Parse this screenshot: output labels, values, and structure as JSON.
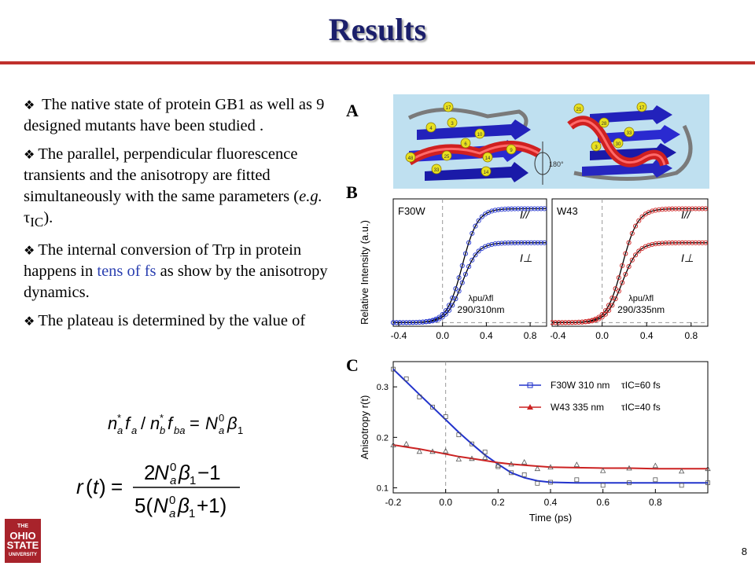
{
  "slide": {
    "title": "Results",
    "page_number": "8",
    "logo": {
      "line1": "THE",
      "line2": "OHIO STATE",
      "line3": "UNIVERSITY"
    }
  },
  "bullets": [
    {
      "pre": " The native state of protein GB1 as well as 9 designed mutants have been studied ."
    },
    {
      "pre": "The parallel, perpendicular fluorescence transients and the anisotropy are fitted simultaneously with the same parameters (",
      "italic": "e.g.",
      "post": " τ",
      "sub": "IC",
      "tail": ")."
    },
    {
      "pre": "The internal conversion of Trp in protein happens in ",
      "highlight": "tens of fs",
      "post": " as show by the anisotropy dynamics."
    },
    {
      "pre": "The plateau is determined by the value of"
    }
  ],
  "equations": {
    "inline": "n*a fa / n*b fba = N0a β1",
    "big": "r(t) = (2N0a β1 − 1) / (5(N0a β1 + 1))"
  },
  "panels": {
    "A": "A",
    "B": "B",
    "C": "C"
  },
  "panel_A": {
    "rotation_label": "180°",
    "residue_labels": [
      "17",
      "4",
      "3",
      "10",
      "6",
      "25",
      "33",
      "14",
      "48",
      "14",
      "9",
      "21",
      "28",
      "33",
      "30",
      "3",
      "17"
    ]
  },
  "panel_B": {
    "ylabel": "Relative Intensity (a.u.)",
    "xticks": [
      "-0.4",
      "0.0",
      "0.4",
      "0.8"
    ],
    "left": {
      "name": "F30W",
      "wavelength_label": "λpu/λfl",
      "wavelength_value": "290/310nm",
      "color": "#2233cc"
    },
    "right": {
      "name": "W43",
      "wavelength_label": "λpu/λfl",
      "wavelength_value": "290/335nm",
      "color": "#cc2222"
    },
    "par_label": "I//",
    "perp_label": "I⊥"
  },
  "chart_data": {
    "type": "line",
    "xlabel": "Time (ps)",
    "ylabel": "Anisotropy r(t)",
    "xlim": [
      -0.2,
      1.0
    ],
    "ylim": [
      0.09,
      0.35
    ],
    "xticks": [
      "-0.2",
      "0.0",
      "0.2",
      "0.4",
      "0.6",
      "0.8"
    ],
    "yticks": [
      "0.1",
      "0.2",
      "0.3"
    ],
    "series": [
      {
        "name": "F30W 310 nm",
        "tau_label": "τIC=60 fs",
        "color": "#2233cc",
        "x": [
          -0.2,
          -0.15,
          -0.1,
          -0.05,
          0.0,
          0.05,
          0.1,
          0.15,
          0.2,
          0.25,
          0.3,
          0.35,
          0.4,
          0.5,
          0.6,
          0.7,
          0.8,
          0.9,
          1.0
        ],
        "y": [
          0.335,
          0.31,
          0.285,
          0.26,
          0.235,
          0.21,
          0.187,
          0.165,
          0.147,
          0.13,
          0.12,
          0.114,
          0.111,
          0.11,
          0.11,
          0.11,
          0.11,
          0.11,
          0.11
        ]
      },
      {
        "name": "W43 335 nm",
        "tau_label": "τIC=40 fs",
        "color": "#cc2222",
        "x": [
          -0.2,
          -0.15,
          -0.1,
          -0.05,
          0.0,
          0.05,
          0.1,
          0.15,
          0.2,
          0.25,
          0.3,
          0.35,
          0.4,
          0.5,
          0.6,
          0.7,
          0.8,
          0.9,
          1.0
        ],
        "y": [
          0.185,
          0.181,
          0.177,
          0.172,
          0.167,
          0.162,
          0.158,
          0.154,
          0.15,
          0.147,
          0.145,
          0.143,
          0.141,
          0.14,
          0.139,
          0.139,
          0.138,
          0.138,
          0.138
        ]
      }
    ]
  }
}
